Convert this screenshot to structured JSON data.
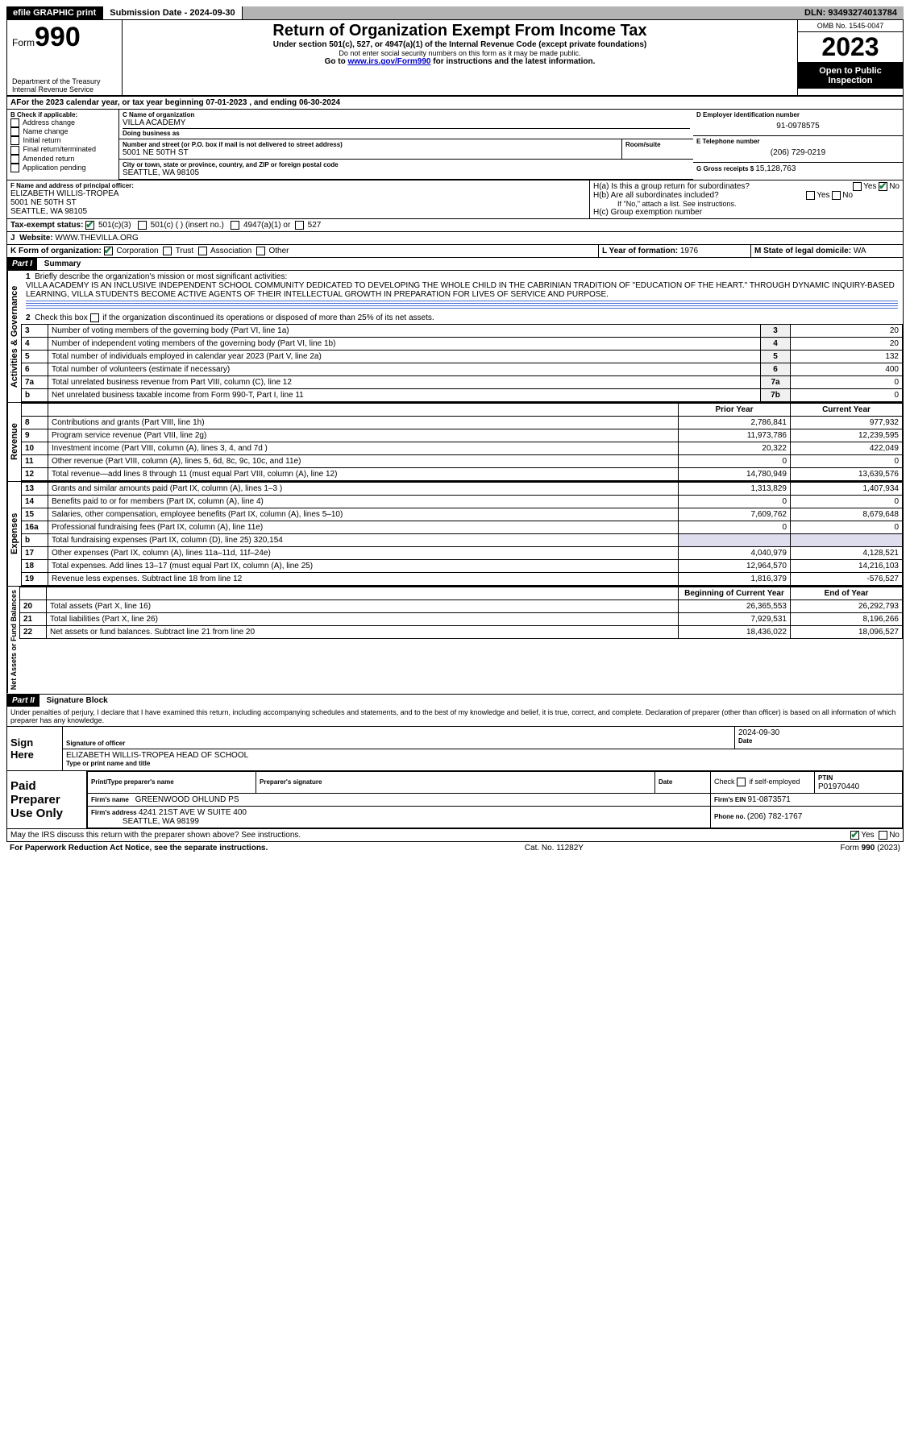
{
  "topbar": {
    "efile": "efile GRAPHIC print",
    "subdate_label": "Submission Date - ",
    "subdate": "2024-09-30",
    "dln_label": "DLN: ",
    "dln": "93493274013784"
  },
  "header": {
    "form_label": "Form",
    "form_num": "990",
    "title": "Return of Organization Exempt From Income Tax",
    "sub1": "Under section 501(c), 527, or 4947(a)(1) of the Internal Revenue Code (except private foundations)",
    "sub2": "Do not enter social security numbers on this form as it may be made public.",
    "sub3_a": "Go to ",
    "sub3_link": "www.irs.gov/Form990",
    "sub3_b": " for instructions and the latest information.",
    "dept": "Department of the Treasury",
    "irs": "Internal Revenue Service",
    "omb": "OMB No. 1545-0047",
    "year": "2023",
    "openpub": "Open to Public Inspection"
  },
  "lineA": {
    "text_a": "For the 2023 calendar year, or tax year beginning ",
    "begin": "07-01-2023",
    "text_b": " , and ending ",
    "end": "06-30-2024"
  },
  "boxB": {
    "label": "B Check if applicable:",
    "items": [
      "Address change",
      "Name change",
      "Initial return",
      "Final return/terminated",
      "Amended return",
      "Application pending"
    ]
  },
  "boxC": {
    "name_label": "C Name of organization",
    "name": "VILLA ACADEMY",
    "dba_label": "Doing business as",
    "addr_label": "Number and street (or P.O. box if mail is not delivered to street address)",
    "room_label": "Room/suite",
    "addr": "5001 NE 50TH ST",
    "city_label": "City or town, state or province, country, and ZIP or foreign postal code",
    "city": "SEATTLE, WA  98105"
  },
  "boxD": {
    "label": "D Employer identification number",
    "val": "91-0978575"
  },
  "boxE": {
    "label": "E Telephone number",
    "val": "(206) 729-0219"
  },
  "boxG": {
    "label": "G Gross receipts $ ",
    "val": "15,128,763"
  },
  "boxF": {
    "label": "F Name and address of principal officer:",
    "name": "ELIZABETH WILLIS-TROPEA",
    "addr1": "5001 NE 50TH ST",
    "addr2": "SEATTLE, WA  98105"
  },
  "boxH": {
    "a": "H(a)  Is this a group return for subordinates?",
    "b": "H(b)  Are all subordinates included?",
    "b_note": "If \"No,\" attach a list. See instructions.",
    "c": "H(c)  Group exemption number ",
    "yes": "Yes",
    "no": "No"
  },
  "boxI": {
    "label": "Tax-exempt status:",
    "c3": "501(c)(3)",
    "c_ins": "501(c) (  ) (insert no.)",
    "a1": "4947(a)(1) or",
    "527": "527"
  },
  "boxJ": {
    "label": "Website: ",
    "val": "WWW.THEVILLA.ORG"
  },
  "boxK": {
    "label": "K Form of organization:",
    "corp": "Corporation",
    "trust": "Trust",
    "assoc": "Association",
    "other": "Other"
  },
  "boxL": {
    "label": "L Year of formation: ",
    "val": "1976"
  },
  "boxM": {
    "label": "M State of legal domicile: ",
    "val": "WA"
  },
  "partI": {
    "hdr": "Part I",
    "title": "Summary",
    "side1": "Activities & Governance",
    "side2": "Revenue",
    "side3": "Expenses",
    "side4": "Net Assets or Fund Balances",
    "q1_label": "1",
    "q1": "Briefly describe the organization's mission or most significant activities:",
    "q1_text": "VILLA ACADEMY IS AN INCLUSIVE INDEPENDENT SCHOOL COMMUNITY DEDICATED TO DEVELOPING THE WHOLE CHILD IN THE CABRINIAN TRADITION OF \"EDUCATION OF THE HEART.\" THROUGH DYNAMIC INQUIRY-BASED LEARNING, VILLA STUDENTS BECOME ACTIVE AGENTS OF THEIR INTELLECTUAL GROWTH IN PREPARATION FOR LIVES OF SERVICE AND PURPOSE.",
    "q2_label": "2",
    "q2": "Check this box         if the organization discontinued its operations or disposed of more than 25% of its net assets.",
    "lines_gov": [
      {
        "n": "3",
        "t": "Number of voting members of the governing body (Part VI, line 1a)",
        "box": "3",
        "v": "20"
      },
      {
        "n": "4",
        "t": "Number of independent voting members of the governing body (Part VI, line 1b)",
        "box": "4",
        "v": "20"
      },
      {
        "n": "5",
        "t": "Total number of individuals employed in calendar year 2023 (Part V, line 2a)",
        "box": "5",
        "v": "132"
      },
      {
        "n": "6",
        "t": "Total number of volunteers (estimate if necessary)",
        "box": "6",
        "v": "400"
      },
      {
        "n": "7a",
        "t": "Total unrelated business revenue from Part VIII, column (C), line 12",
        "box": "7a",
        "v": "0"
      },
      {
        "n": "b",
        "t": "Net unrelated business taxable income from Form 990-T, Part I, line 11",
        "box": "7b",
        "v": "0"
      }
    ],
    "col_prior": "Prior Year",
    "col_curr": "Current Year",
    "lines_rev": [
      {
        "n": "8",
        "t": "Contributions and grants (Part VIII, line 1h)",
        "p": "2,786,841",
        "c": "977,932"
      },
      {
        "n": "9",
        "t": "Program service revenue (Part VIII, line 2g)",
        "p": "11,973,786",
        "c": "12,239,595"
      },
      {
        "n": "10",
        "t": "Investment income (Part VIII, column (A), lines 3, 4, and 7d )",
        "p": "20,322",
        "c": "422,049"
      },
      {
        "n": "11",
        "t": "Other revenue (Part VIII, column (A), lines 5, 6d, 8c, 9c, 10c, and 11e)",
        "p": "0",
        "c": "0"
      },
      {
        "n": "12",
        "t": "Total revenue—add lines 8 through 11 (must equal Part VIII, column (A), line 12)",
        "p": "14,780,949",
        "c": "13,639,576"
      }
    ],
    "lines_exp": [
      {
        "n": "13",
        "t": "Grants and similar amounts paid (Part IX, column (A), lines 1–3 )",
        "p": "1,313,829",
        "c": "1,407,934"
      },
      {
        "n": "14",
        "t": "Benefits paid to or for members (Part IX, column (A), line 4)",
        "p": "0",
        "c": "0"
      },
      {
        "n": "15",
        "t": "Salaries, other compensation, employee benefits (Part IX, column (A), lines 5–10)",
        "p": "7,609,762",
        "c": "8,679,648"
      },
      {
        "n": "16a",
        "t": "Professional fundraising fees (Part IX, column (A), line 11e)",
        "p": "0",
        "c": "0"
      },
      {
        "n": "b",
        "t": "Total fundraising expenses (Part IX, column (D), line 25) 320,154",
        "p": "",
        "c": "",
        "shade": true
      },
      {
        "n": "17",
        "t": "Other expenses (Part IX, column (A), lines 11a–11d, 11f–24e)",
        "p": "4,040,979",
        "c": "4,128,521"
      },
      {
        "n": "18",
        "t": "Total expenses. Add lines 13–17 (must equal Part IX, column (A), line 25)",
        "p": "12,964,570",
        "c": "14,216,103"
      },
      {
        "n": "19",
        "t": "Revenue less expenses. Subtract line 18 from line 12",
        "p": "1,816,379",
        "c": "-576,527"
      }
    ],
    "col_beg": "Beginning of Current Year",
    "col_end": "End of Year",
    "lines_net": [
      {
        "n": "20",
        "t": "Total assets (Part X, line 16)",
        "p": "26,365,553",
        "c": "26,292,793"
      },
      {
        "n": "21",
        "t": "Total liabilities (Part X, line 26)",
        "p": "7,929,531",
        "c": "8,196,266"
      },
      {
        "n": "22",
        "t": "Net assets or fund balances. Subtract line 21 from line 20",
        "p": "18,436,022",
        "c": "18,096,527"
      }
    ]
  },
  "partII": {
    "hdr": "Part II",
    "title": "Signature Block",
    "decl": "Under penalties of perjury, I declare that I have examined this return, including accompanying schedules and statements, and to the best of my knowledge and belief, it is true, correct, and complete. Declaration of preparer (other than officer) is based on all information of which preparer has any knowledge.",
    "sign_here": "Sign Here",
    "sig_label": "Signature of officer",
    "sig_date_label": "Date",
    "sig_date": "2024-09-30",
    "officer": "ELIZABETH WILLIS-TROPEA  HEAD OF SCHOOL",
    "type_label": "Type or print name and title",
    "paid": "Paid Preparer Use Only",
    "prep_name_label": "Print/Type preparer's name",
    "prep_sig_label": "Preparer's signature",
    "date_label": "Date",
    "check_label": "Check         if self-employed",
    "ptin_label": "PTIN",
    "ptin": "P01970440",
    "firm_name_label": "Firm's name  ",
    "firm_name": "GREENWOOD OHLUND PS",
    "firm_ein_label": "Firm's EIN  ",
    "firm_ein": "91-0873571",
    "firm_addr_label": "Firm's address ",
    "firm_addr1": "4241 21ST AVE W SUITE 400",
    "firm_addr2": "SEATTLE, WA  98199",
    "phone_label": "Phone no. ",
    "phone": "(206) 782-1767",
    "discuss": "May the IRS discuss this return with the preparer shown above? See instructions.",
    "yes": "Yes",
    "no": "No"
  },
  "footer": {
    "left": "For Paperwork Reduction Act Notice, see the separate instructions.",
    "mid": "Cat. No. 11282Y",
    "right": "Form 990 (2023)"
  }
}
